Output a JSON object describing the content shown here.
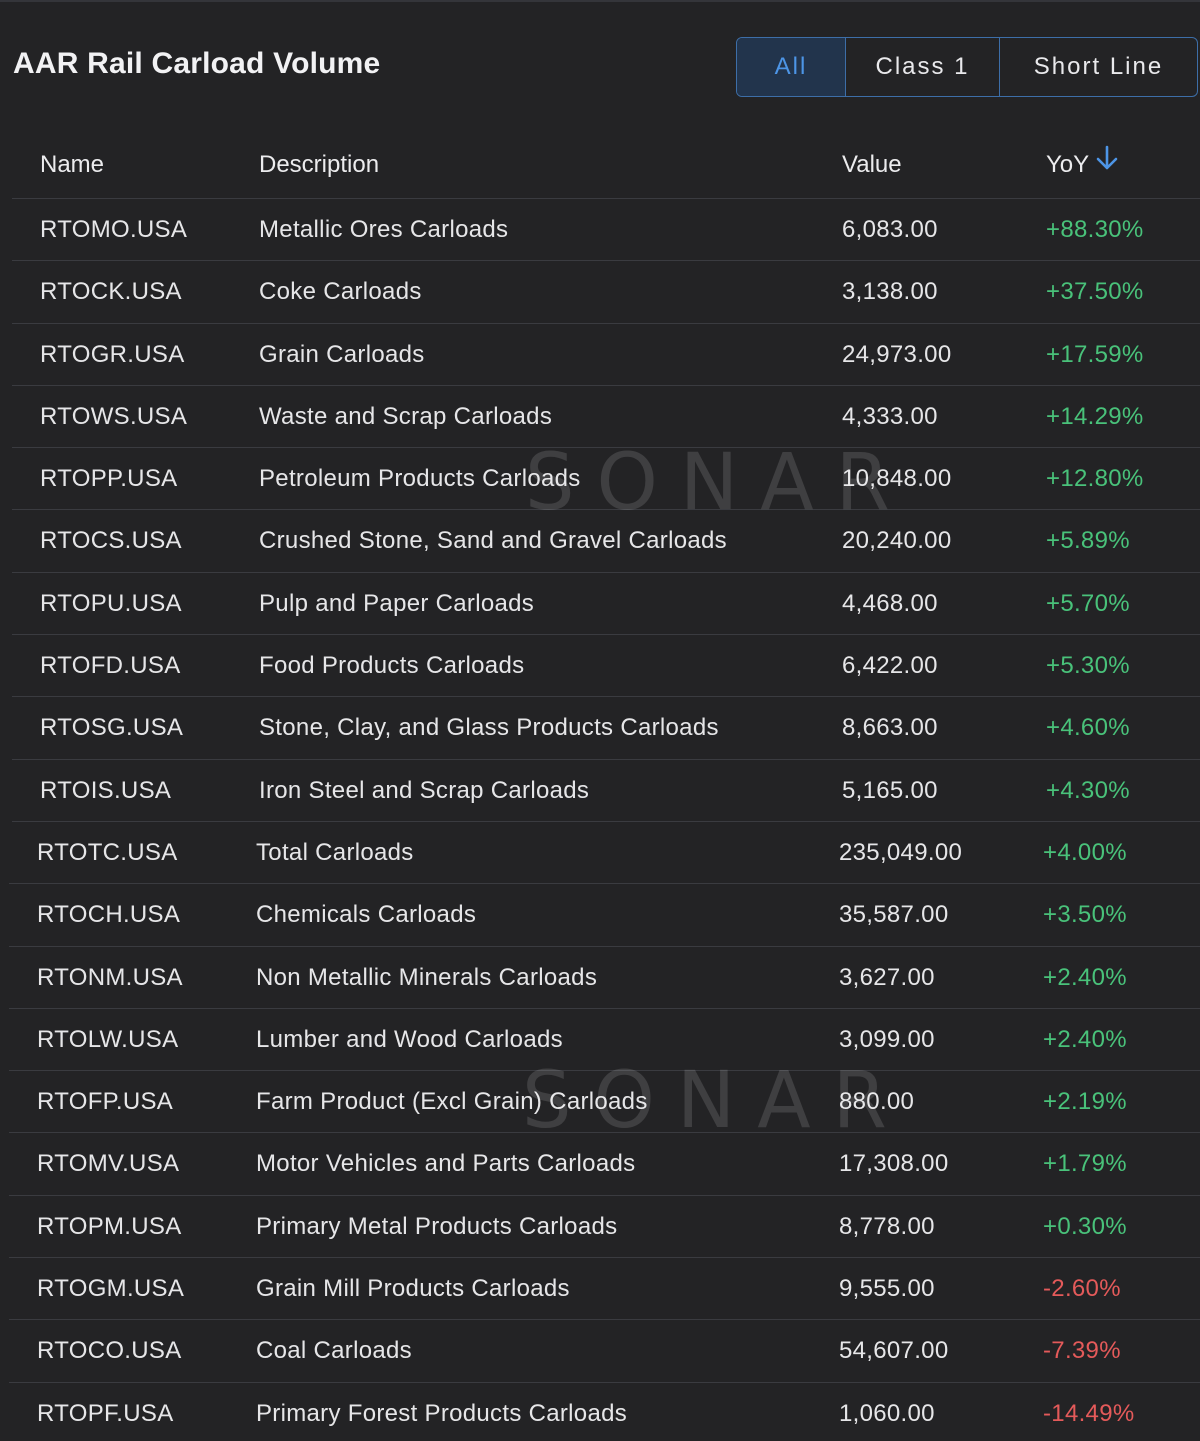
{
  "header": {
    "title": "AAR Rail Carload Volume",
    "tabs": [
      {
        "label": "All",
        "active": true
      },
      {
        "label": "Class 1",
        "active": false
      },
      {
        "label": "Short Line",
        "active": false
      }
    ]
  },
  "table": {
    "columns": {
      "name": "Name",
      "description": "Description",
      "value": "Value",
      "yoy": "YoY"
    },
    "sort": {
      "column": "yoy",
      "direction": "descending",
      "icon": "arrow-down-icon"
    },
    "rows": [
      {
        "name": "RTOMO.USA",
        "description": "Metallic Ores Carloads",
        "value": "6,083.00",
        "yoy": "+88.30%",
        "trend": "pos"
      },
      {
        "name": "RTOCK.USA",
        "description": "Coke Carloads",
        "value": "3,138.00",
        "yoy": "+37.50%",
        "trend": "pos"
      },
      {
        "name": "RTOGR.USA",
        "description": "Grain Carloads",
        "value": "24,973.00",
        "yoy": "+17.59%",
        "trend": "pos"
      },
      {
        "name": "RTOWS.USA",
        "description": "Waste and Scrap Carloads",
        "value": "4,333.00",
        "yoy": "+14.29%",
        "trend": "pos"
      },
      {
        "name": "RTOPP.USA",
        "description": "Petroleum Products Carloads",
        "value": "10,848.00",
        "yoy": "+12.80%",
        "trend": "pos"
      },
      {
        "name": "RTOCS.USA",
        "description": "Crushed Stone, Sand and Gravel Carloads",
        "value": "20,240.00",
        "yoy": "+5.89%",
        "trend": "pos"
      },
      {
        "name": "RTOPU.USA",
        "description": "Pulp and Paper Carloads",
        "value": "4,468.00",
        "yoy": "+5.70%",
        "trend": "pos"
      },
      {
        "name": "RTOFD.USA",
        "description": "Food Products Carloads",
        "value": "6,422.00",
        "yoy": "+5.30%",
        "trend": "pos"
      },
      {
        "name": "RTOSG.USA",
        "description": "Stone, Clay, and Glass Products Carloads",
        "value": "8,663.00",
        "yoy": "+4.60%",
        "trend": "pos"
      },
      {
        "name": "RTOIS.USA",
        "description": "Iron Steel and Scrap Carloads",
        "value": "5,165.00",
        "yoy": "+4.30%",
        "trend": "pos"
      },
      {
        "name": "RTOTC.USA",
        "description": "Total Carloads",
        "value": "235,049.00",
        "yoy": "+4.00%",
        "trend": "pos"
      },
      {
        "name": "RTOCH.USA",
        "description": "Chemicals Carloads",
        "value": "35,587.00",
        "yoy": "+3.50%",
        "trend": "pos"
      },
      {
        "name": "RTONM.USA",
        "description": "Non Metallic Minerals Carloads",
        "value": "3,627.00",
        "yoy": "+2.40%",
        "trend": "pos"
      },
      {
        "name": "RTOLW.USA",
        "description": "Lumber and Wood Carloads",
        "value": "3,099.00",
        "yoy": "+2.40%",
        "trend": "pos"
      },
      {
        "name": "RTOFP.USA",
        "description": "Farm Product (Excl Grain) Carloads",
        "value": "880.00",
        "yoy": "+2.19%",
        "trend": "pos"
      },
      {
        "name": "RTOMV.USA",
        "description": "Motor Vehicles and Parts Carloads",
        "value": "17,308.00",
        "yoy": "+1.79%",
        "trend": "pos"
      },
      {
        "name": "RTOPM.USA",
        "description": "Primary Metal Products Carloads",
        "value": "8,778.00",
        "yoy": "+0.30%",
        "trend": "pos"
      },
      {
        "name": "RTOGM.USA",
        "description": "Grain Mill Products Carloads",
        "value": "9,555.00",
        "yoy": "-2.60%",
        "trend": "neg"
      },
      {
        "name": "RTOCO.USA",
        "description": "Coal Carloads",
        "value": "54,607.00",
        "yoy": "-7.39%",
        "trend": "neg"
      },
      {
        "name": "RTOPF.USA",
        "description": "Primary Forest Products Carloads",
        "value": "1,060.00",
        "yoy": "-14.49%",
        "trend": "neg"
      }
    ]
  },
  "watermark": {
    "text": "SONAR"
  },
  "colors": {
    "background": "#232325",
    "accent": "#4d95e6",
    "positive": "#49c27a",
    "negative": "#e45a5a"
  }
}
